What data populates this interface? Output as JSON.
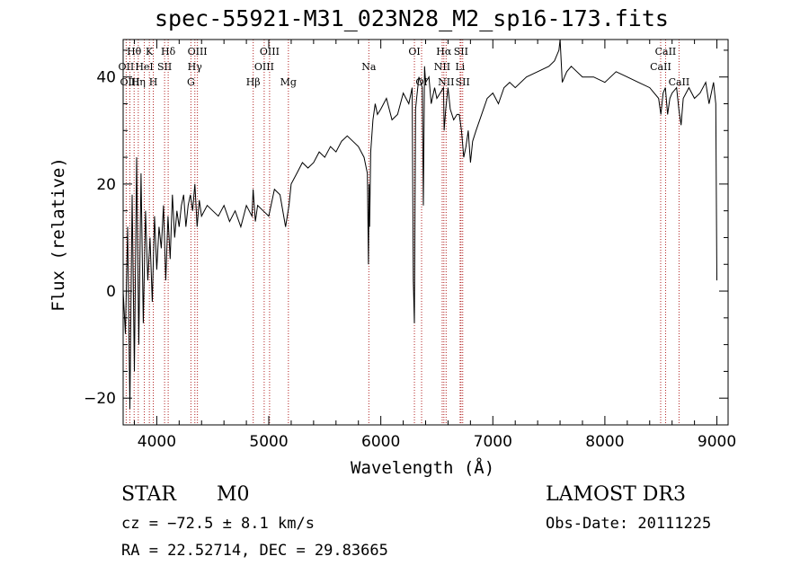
{
  "chart_data": {
    "type": "line",
    "title": "spec-55921-M31_023N28_M2_sp16-173.fits",
    "xlabel": "Wavelength (Å)",
    "ylabel": "Flux (relative)",
    "xlim": [
      3700,
      9100
    ],
    "ylim": [
      -25,
      47
    ],
    "xticks": [
      4000,
      5000,
      6000,
      7000,
      8000,
      9000
    ],
    "xtick_labels": [
      "4000",
      "5000",
      "6000",
      "7000",
      "8000",
      "9000"
    ],
    "yticks": [
      -20,
      0,
      20,
      40
    ],
    "ytick_labels": [
      "−20",
      "0",
      "20",
      "40"
    ],
    "color_spectrum": "#000000",
    "color_lines": "#b22222",
    "series": [
      {
        "name": "flux",
        "x": [
          3700,
          3720,
          3740,
          3760,
          3780,
          3800,
          3820,
          3840,
          3860,
          3880,
          3900,
          3920,
          3940,
          3960,
          3980,
          4000,
          4020,
          4040,
          4060,
          4080,
          4100,
          4120,
          4140,
          4160,
          4180,
          4200,
          4220,
          4240,
          4260,
          4280,
          4300,
          4320,
          4340,
          4360,
          4380,
          4400,
          4450,
          4500,
          4550,
          4600,
          4650,
          4700,
          4750,
          4800,
          4850,
          4860,
          4880,
          4900,
          4950,
          5000,
          5050,
          5100,
          5150,
          5180,
          5200,
          5250,
          5300,
          5350,
          5400,
          5450,
          5500,
          5550,
          5600,
          5650,
          5700,
          5750,
          5800,
          5850,
          5880,
          5890,
          5895,
          5900,
          5910,
          5930,
          5950,
          5970,
          6000,
          6050,
          6100,
          6150,
          6200,
          6250,
          6280,
          6290,
          6300,
          6310,
          6320,
          6340,
          6370,
          6380,
          6390,
          6400,
          6430,
          6450,
          6480,
          6500,
          6530,
          6560,
          6565,
          6580,
          6600,
          6620,
          6650,
          6680,
          6700,
          6720,
          6740,
          6760,
          6780,
          6800,
          6820,
          6850,
          6900,
          6950,
          7000,
          7050,
          7100,
          7150,
          7200,
          7300,
          7400,
          7500,
          7550,
          7590,
          7600,
          7620,
          7640,
          7660,
          7700,
          7800,
          7900,
          8000,
          8100,
          8200,
          8300,
          8400,
          8480,
          8500,
          8520,
          8540,
          8560,
          8580,
          8600,
          8640,
          8660,
          8680,
          8700,
          8750,
          8800,
          8850,
          8900,
          8930,
          8950,
          8970,
          8990,
          9000
        ],
        "y": [
          0,
          -8,
          12,
          -22,
          18,
          -15,
          25,
          -10,
          22,
          -6,
          15,
          2,
          10,
          -2,
          14,
          4,
          12,
          8,
          16,
          2,
          14,
          6,
          18,
          10,
          15,
          12,
          16,
          18,
          12,
          16,
          18,
          15,
          20,
          12,
          17,
          14,
          16,
          15,
          14,
          16,
          13,
          15,
          12,
          16,
          14,
          19,
          13,
          16,
          15,
          14,
          19,
          18,
          12,
          16,
          20,
          22,
          24,
          23,
          24,
          26,
          25,
          27,
          26,
          28,
          29,
          28,
          27,
          25,
          22,
          5,
          20,
          12,
          26,
          32,
          35,
          33,
          34,
          36,
          32,
          33,
          37,
          35,
          38,
          2,
          -6,
          34,
          36,
          40,
          38,
          16,
          42,
          39,
          40,
          35,
          38,
          36,
          37,
          38,
          30,
          34,
          38,
          34,
          32,
          33,
          33,
          30,
          25,
          27,
          30,
          24,
          28,
          30,
          33,
          36,
          37,
          35,
          38,
          39,
          38,
          40,
          41,
          42,
          43,
          45,
          48,
          39,
          40,
          41,
          42,
          40,
          40,
          39,
          41,
          40,
          39,
          38,
          36,
          33,
          37,
          38,
          33,
          36,
          37,
          38,
          34,
          31,
          36,
          38,
          36,
          37,
          39,
          35,
          37,
          39,
          35,
          2
        ]
      }
    ],
    "line_markers": [
      {
        "label": "Hθ",
        "x": 3798,
        "tier": 0
      },
      {
        "label": "OII",
        "x": 3727,
        "tier": 1
      },
      {
        "label": "OIII",
        "x": 3760,
        "tier": 2
      },
      {
        "label": "Hη",
        "x": 3835,
        "tier": 2
      },
      {
        "label": "HeI",
        "x": 3889,
        "tier": 1
      },
      {
        "label": "K",
        "x": 3934,
        "tier": 0
      },
      {
        "label": "SII",
        "x": 4070,
        "tier": 1
      },
      {
        "label": "H",
        "x": 3969,
        "tier": 2
      },
      {
        "label": "Hδ",
        "x": 4102,
        "tier": 0
      },
      {
        "label": "OIII",
        "x": 4363,
        "tier": 0
      },
      {
        "label": "Hγ",
        "x": 4340,
        "tier": 1
      },
      {
        "label": "G",
        "x": 4305,
        "tier": 2
      },
      {
        "label": "OIII",
        "x": 5007,
        "tier": 0
      },
      {
        "label": "OIII",
        "x": 4959,
        "tier": 1
      },
      {
        "label": "Hβ",
        "x": 4861,
        "tier": 2
      },
      {
        "label": "Mg",
        "x": 5175,
        "tier": 2
      },
      {
        "label": "Na",
        "x": 5893,
        "tier": 1
      },
      {
        "label": "OI",
        "x": 6300,
        "tier": 0
      },
      {
        "label": "OI",
        "x": 6364,
        "tier": 2
      },
      {
        "label": "Hα",
        "x": 6563,
        "tier": 0
      },
      {
        "label": "SII",
        "x": 6716,
        "tier": 0
      },
      {
        "label": "NII",
        "x": 6548,
        "tier": 1
      },
      {
        "label": "Li",
        "x": 6708,
        "tier": 1
      },
      {
        "label": "NII",
        "x": 6583,
        "tier": 2
      },
      {
        "label": "SII",
        "x": 6731,
        "tier": 2
      },
      {
        "label": "CaII",
        "x": 8542,
        "tier": 0
      },
      {
        "label": "CaII",
        "x": 8498,
        "tier": 1
      },
      {
        "label": "CaII",
        "x": 8662,
        "tier": 2
      }
    ]
  },
  "info": {
    "class": "STAR",
    "subclass": "M0",
    "survey": "LAMOST DR3",
    "cz": "cz = −72.5 ± 8.1 km/s",
    "obs_date": "Obs-Date: 20111225",
    "coords": "RA =  22.52714, DEC =  29.83665"
  }
}
